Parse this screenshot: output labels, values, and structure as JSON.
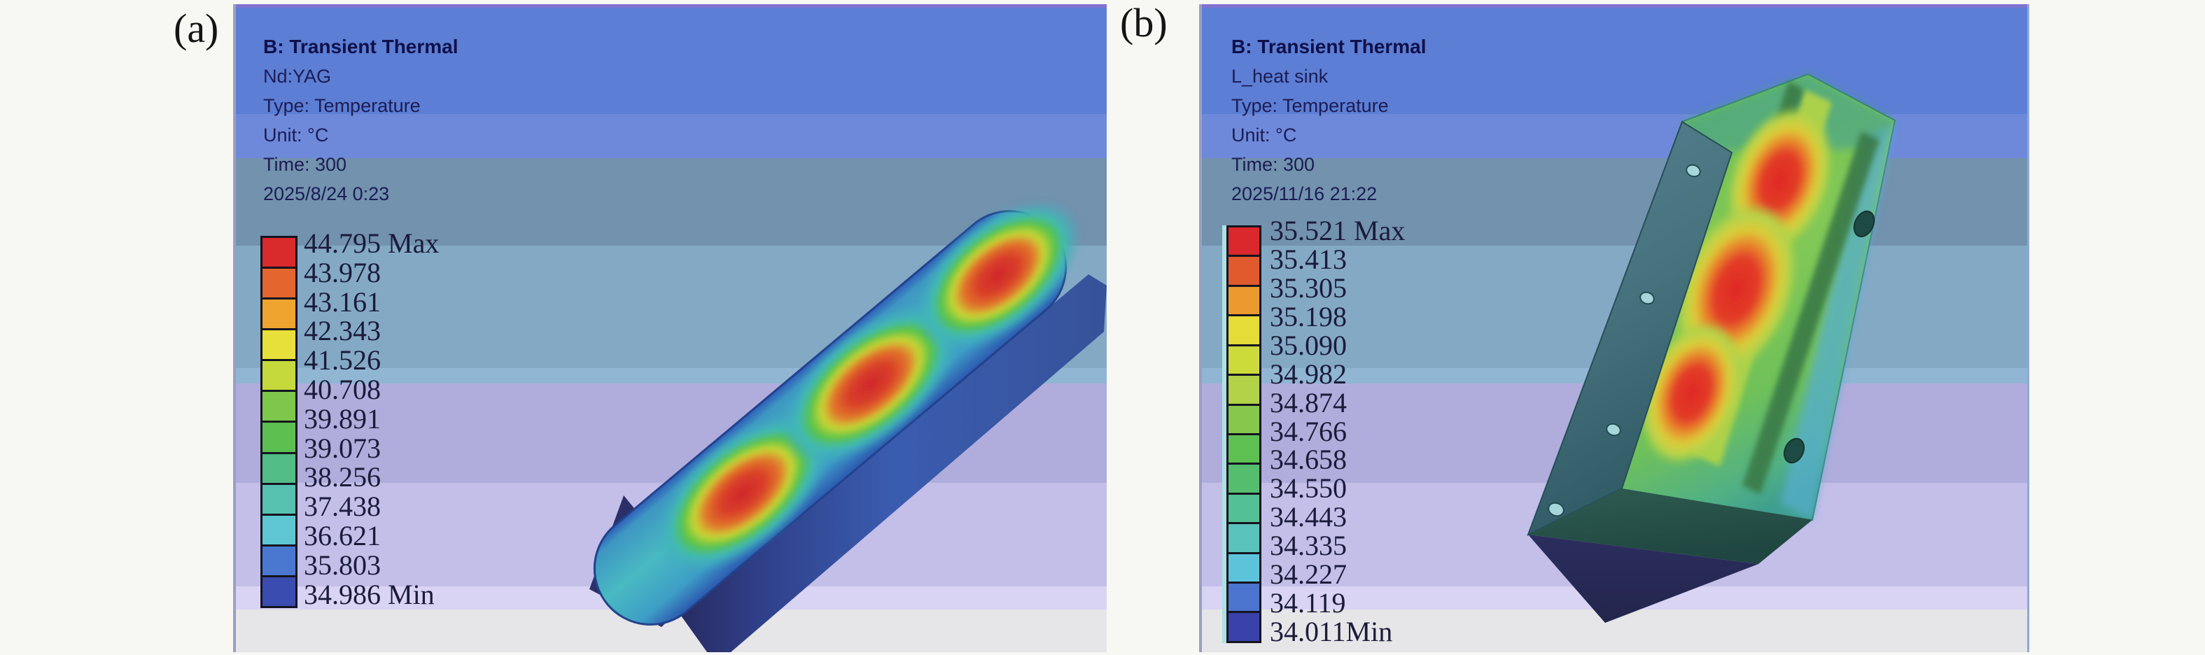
{
  "figure": {
    "app_context": "ANSYS Mechanical transient thermal results, two viewports",
    "panels": [
      {
        "label": "(a)",
        "header": {
          "title": "B: Transient Thermal",
          "lines": [
            "Nd:YAG",
            "Type: Temperature",
            "Unit: °C",
            "Time: 300",
            "2025/8/24 0:23"
          ]
        },
        "legend": {
          "unit": "°C",
          "labels": [
            "44.795 Max",
            "43.978",
            "43.161",
            "42.343",
            "41.526",
            "40.708",
            "39.891",
            "39.073",
            "38.256",
            "37.438",
            "36.621",
            "35.803",
            "34.986 Min"
          ],
          "colors": [
            "#d92a2c",
            "#e4652e",
            "#efa42f",
            "#e7e03a",
            "#c5d93c",
            "#7fc74a",
            "#5cc050",
            "#52bd86",
            "#57c1b0",
            "#5ec6d2",
            "#4a78d0",
            "#3a4cb0"
          ]
        }
      },
      {
        "label": "(b)",
        "header": {
          "title": "B: Transient Thermal",
          "lines": [
            "L_heat sink",
            "Type: Temperature",
            "Unit: °C",
            "Time: 300",
            "2025/11/16 21:22"
          ]
        },
        "legend": {
          "unit": "°C",
          "labels": [
            "35.521 Max",
            "35.413",
            "35.305",
            "35.198",
            "35.090",
            "34.982",
            "34.874",
            "34.766",
            "34.658",
            "34.550",
            "34.443",
            "34.335",
            "34.227",
            "34.119",
            "34.011Min"
          ],
          "colors": [
            "#da282d",
            "#e05a2e",
            "#eb9b2e",
            "#e6dc38",
            "#cdda3b",
            "#b2d247",
            "#86c84b",
            "#5fc052",
            "#54be6e",
            "#53c095",
            "#59c3bc",
            "#5dc3da",
            "#4a74ce",
            "#3a41aa"
          ]
        }
      }
    ]
  }
}
